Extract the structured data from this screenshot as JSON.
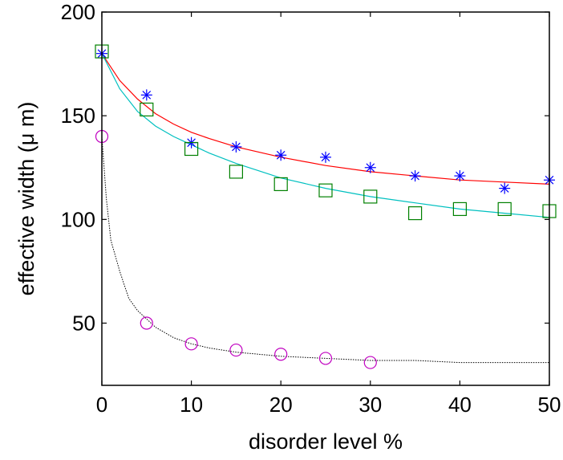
{
  "chart_data": {
    "type": "scatter",
    "xlabel": "disorder level %",
    "ylabel": "effective width (μ m)",
    "xlim": [
      0,
      50
    ],
    "ylim": [
      20,
      200
    ],
    "x_ticks": [
      0,
      10,
      20,
      30,
      40,
      50
    ],
    "y_ticks": [
      50,
      100,
      150,
      200
    ],
    "x_tick_labels": [
      "0",
      "10",
      "20",
      "30",
      "40",
      "50"
    ],
    "y_tick_labels": [
      "50",
      "100",
      "150",
      "200"
    ],
    "grid": false,
    "legend": "none",
    "series": [
      {
        "marker": "star",
        "color": "#0000ff",
        "x": [
          0,
          5,
          10,
          15,
          20,
          25,
          30,
          35,
          40,
          45,
          50
        ],
        "y": [
          180,
          160,
          137,
          135,
          131,
          130,
          125,
          121,
          121,
          115,
          119
        ]
      },
      {
        "marker": "square",
        "color": "#008000",
        "x": [
          0,
          5,
          10,
          15,
          20,
          25,
          30,
          35,
          40,
          45,
          50
        ],
        "y": [
          181,
          153,
          134,
          123,
          117,
          114,
          111,
          103,
          105,
          105,
          104
        ]
      },
      {
        "marker": "circle",
        "color": "#c000c0",
        "x": [
          0,
          5,
          10,
          15,
          20,
          25,
          30
        ],
        "y": [
          140,
          50,
          40,
          37,
          35,
          33,
          31
        ]
      },
      {
        "line": "solid",
        "color": "#ff0000",
        "x": [
          0,
          2,
          4,
          6,
          8,
          10,
          12,
          15,
          20,
          25,
          30,
          35,
          40,
          45,
          50
        ],
        "y": [
          180,
          167,
          158,
          151,
          146,
          142,
          139,
          135,
          130,
          126,
          123,
          121,
          119,
          118,
          117
        ]
      },
      {
        "line": "solid",
        "color": "#00c0c0",
        "x": [
          0,
          2,
          4,
          6,
          8,
          10,
          12,
          15,
          20,
          25,
          30,
          35,
          40,
          45,
          50
        ],
        "y": [
          180,
          163,
          152,
          145,
          140,
          136,
          132,
          127,
          120,
          115,
          111,
          108,
          105,
          103,
          101
        ]
      },
      {
        "line": "dotted",
        "color": "#000000",
        "x": [
          0,
          0.5,
          1,
          2,
          3,
          4,
          5,
          6,
          8,
          10,
          12,
          15,
          20,
          25,
          30,
          35,
          40,
          45,
          50
        ],
        "y": [
          140,
          110,
          90,
          75,
          62,
          56,
          52,
          48,
          43,
          40,
          38,
          36,
          34,
          33,
          32,
          32,
          31,
          31,
          31
        ]
      }
    ]
  }
}
